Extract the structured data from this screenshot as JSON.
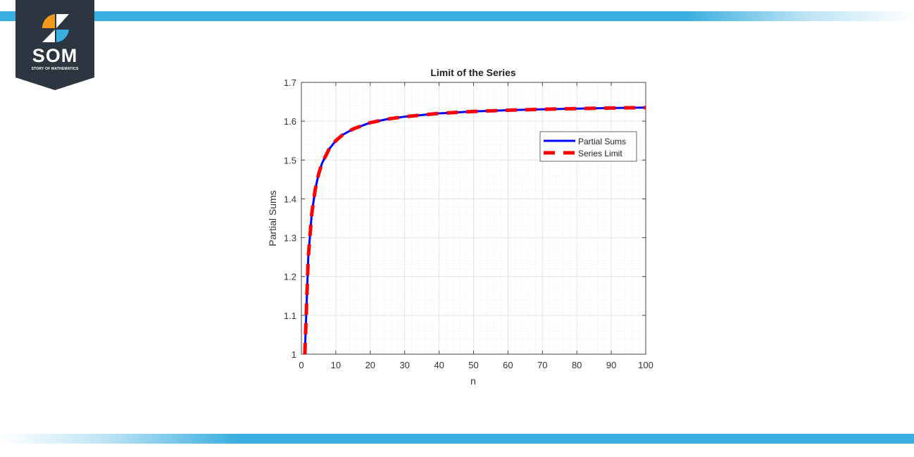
{
  "brand": {
    "name": "SOM",
    "tagline": "STORY OF MATHEMATICS",
    "colors": {
      "dark": "#2b3640",
      "orange": "#f39a1c",
      "blue": "#3aaee0"
    }
  },
  "chart_data": {
    "type": "line",
    "title": "Limit of the Series",
    "xlabel": "n",
    "ylabel": "Partial Sums",
    "xlim": [
      0,
      100
    ],
    "ylim": [
      1,
      1.7
    ],
    "xticks": [
      "0",
      "10",
      "20",
      "30",
      "40",
      "50",
      "60",
      "70",
      "80",
      "90",
      "100"
    ],
    "yticks": [
      "1",
      "1.1",
      "1.2",
      "1.3",
      "1.4",
      "1.5",
      "1.6",
      "1.7"
    ],
    "grid": true,
    "minor_grid": true,
    "legend_position": "upper right (inside)",
    "legend": [
      "Partial Sums",
      "Series Limit"
    ],
    "series": [
      {
        "name": "Partial Sums",
        "color": "#0000ff",
        "style": "solid",
        "x": [
          1,
          2,
          3,
          4,
          5,
          6,
          8,
          10,
          12,
          15,
          20,
          25,
          30,
          40,
          50,
          60,
          70,
          80,
          90,
          100
        ],
        "y": [
          1.0,
          1.25,
          1.3611,
          1.4236,
          1.4636,
          1.4914,
          1.5274,
          1.5498,
          1.565,
          1.58,
          1.5962,
          1.6055,
          1.6116,
          1.6202,
          1.6251,
          1.6284,
          1.6307,
          1.6326,
          1.6339,
          1.635
        ]
      },
      {
        "name": "Series Limit",
        "color": "#ff0000",
        "style": "dashed",
        "x": [
          1,
          2,
          3,
          4,
          5,
          6,
          8,
          10,
          12,
          15,
          20,
          25,
          30,
          40,
          50,
          60,
          70,
          80,
          90,
          100
        ],
        "y": [
          1.0,
          1.25,
          1.3611,
          1.4236,
          1.4636,
          1.4914,
          1.5274,
          1.5498,
          1.565,
          1.58,
          1.5962,
          1.6055,
          1.6116,
          1.6202,
          1.6251,
          1.6284,
          1.6307,
          1.6326,
          1.6339,
          1.635
        ]
      }
    ]
  }
}
